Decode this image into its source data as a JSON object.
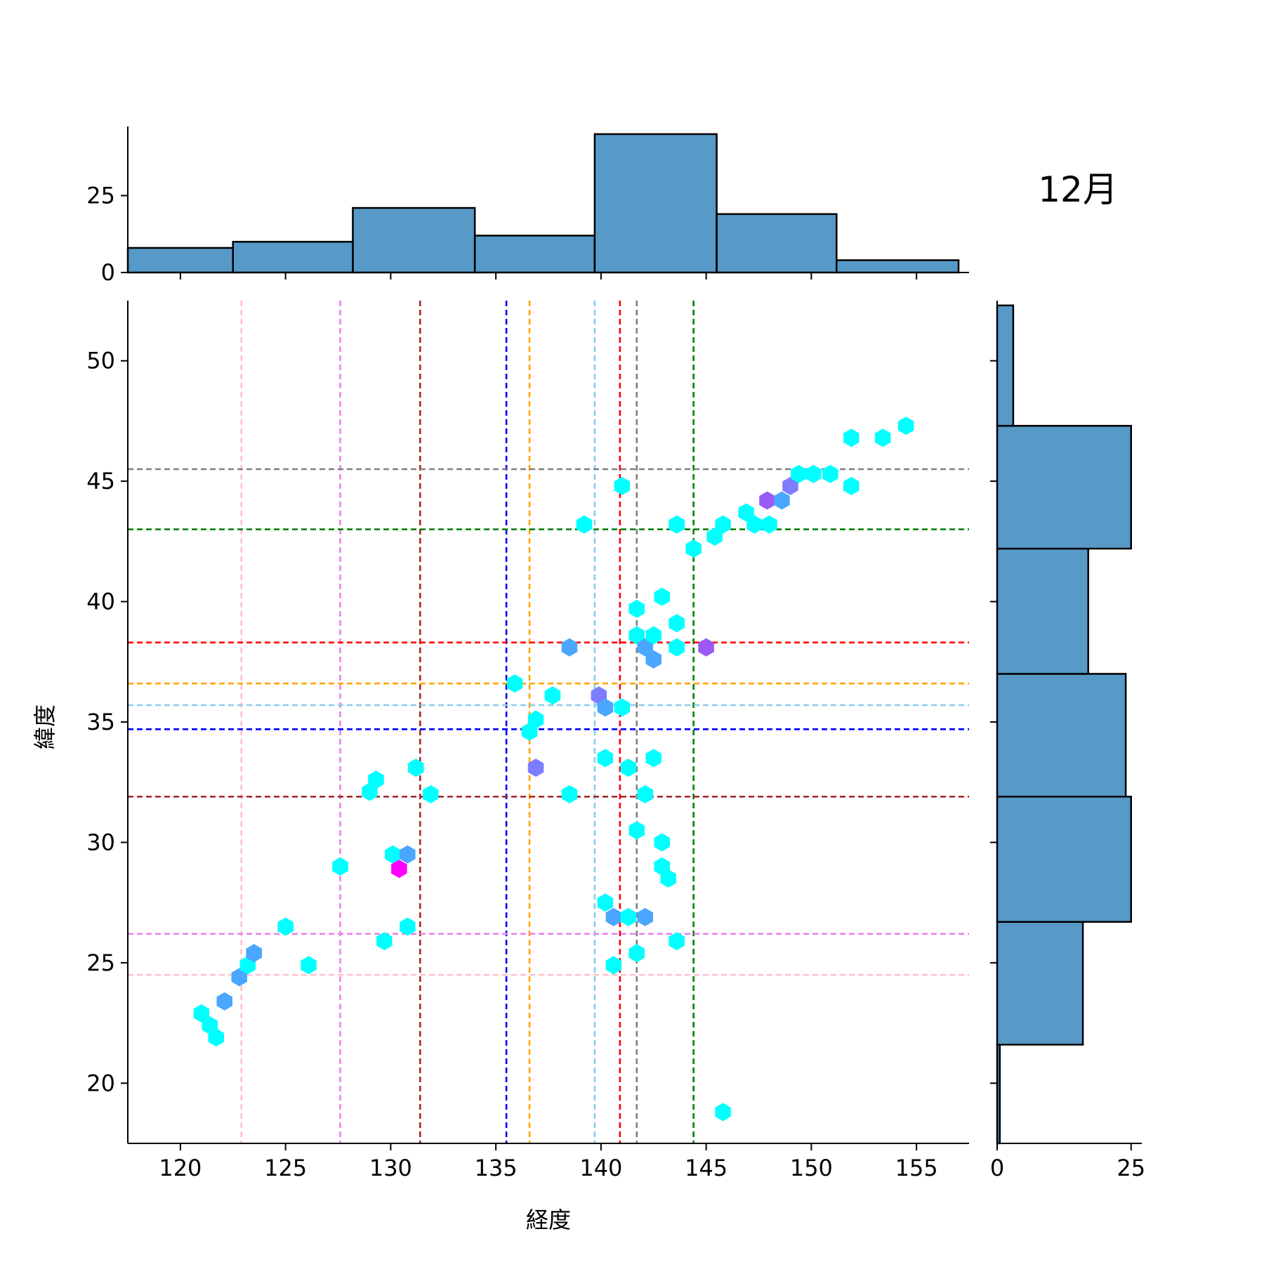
{
  "figure_label": "12月",
  "chart_data": [
    {
      "type": "hexbin",
      "panel": "main",
      "xlabel": "経度",
      "ylabel": "緯度",
      "xlim": [
        117.5,
        157.5
      ],
      "ylim": [
        17.5,
        52.5
      ],
      "xticks": [
        120,
        125,
        130,
        135,
        140,
        145,
        150,
        155
      ],
      "yticks": [
        20,
        25,
        30,
        35,
        40,
        45,
        50
      ],
      "vlines": [
        {
          "x": 122.9,
          "color": "#ffc0cb"
        },
        {
          "x": 127.6,
          "color": "#ee82ee"
        },
        {
          "x": 131.4,
          "color": "#a52a2a"
        },
        {
          "x": 135.5,
          "color": "#0000ff"
        },
        {
          "x": 136.6,
          "color": "#ffa500"
        },
        {
          "x": 139.7,
          "color": "#87ceeb"
        },
        {
          "x": 140.9,
          "color": "#ff0000"
        },
        {
          "x": 141.7,
          "color": "#808080"
        },
        {
          "x": 144.4,
          "color": "#008000"
        }
      ],
      "hlines": [
        {
          "y": 45.5,
          "color": "#808080"
        },
        {
          "y": 43.0,
          "color": "#008000"
        },
        {
          "y": 38.3,
          "color": "#ff0000"
        },
        {
          "y": 36.6,
          "color": "#ffa500"
        },
        {
          "y": 35.7,
          "color": "#87ceeb"
        },
        {
          "y": 34.7,
          "color": "#0000ff"
        },
        {
          "y": 31.9,
          "color": "#a52a2a"
        },
        {
          "y": 26.2,
          "color": "#ee82ee"
        },
        {
          "y": 24.5,
          "color": "#ffc0cb"
        }
      ],
      "points": [
        {
          "x": 121.0,
          "y": 22.9,
          "color": "#00ffff"
        },
        {
          "x": 121.4,
          "y": 22.4,
          "color": "#00ffff"
        },
        {
          "x": 121.7,
          "y": 21.9,
          "color": "#00ffff"
        },
        {
          "x": 122.1,
          "y": 23.4,
          "color": "#4ba6ff"
        },
        {
          "x": 122.8,
          "y": 24.4,
          "color": "#4ba6ff"
        },
        {
          "x": 123.2,
          "y": 24.9,
          "color": "#00ffff"
        },
        {
          "x": 123.5,
          "y": 25.4,
          "color": "#4ba6ff"
        },
        {
          "x": 125.0,
          "y": 26.5,
          "color": "#00ffff"
        },
        {
          "x": 126.1,
          "y": 24.9,
          "color": "#00ffff"
        },
        {
          "x": 127.6,
          "y": 29.0,
          "color": "#00ffff"
        },
        {
          "x": 129.0,
          "y": 32.1,
          "color": "#00ffff"
        },
        {
          "x": 129.3,
          "y": 32.6,
          "color": "#00ffff"
        },
        {
          "x": 129.7,
          "y": 25.9,
          "color": "#00ffff"
        },
        {
          "x": 130.1,
          "y": 29.5,
          "color": "#00ffff"
        },
        {
          "x": 130.4,
          "y": 28.9,
          "color": "#ff00ff"
        },
        {
          "x": 130.8,
          "y": 29.5,
          "color": "#4ba6ff"
        },
        {
          "x": 130.8,
          "y": 26.5,
          "color": "#00ffff"
        },
        {
          "x": 131.2,
          "y": 33.1,
          "color": "#00ffff"
        },
        {
          "x": 131.9,
          "y": 32.0,
          "color": "#00ffff"
        },
        {
          "x": 135.9,
          "y": 36.6,
          "color": "#00ffff"
        },
        {
          "x": 136.6,
          "y": 34.6,
          "color": "#00ffff"
        },
        {
          "x": 136.9,
          "y": 35.1,
          "color": "#00ffff"
        },
        {
          "x": 136.9,
          "y": 33.1,
          "color": "#7d7dff"
        },
        {
          "x": 137.7,
          "y": 36.1,
          "color": "#00ffff"
        },
        {
          "x": 138.5,
          "y": 38.1,
          "color": "#4ba6ff"
        },
        {
          "x": 138.5,
          "y": 32.0,
          "color": "#00ffff"
        },
        {
          "x": 139.2,
          "y": 43.2,
          "color": "#00ffff"
        },
        {
          "x": 139.9,
          "y": 36.1,
          "color": "#7d7dff"
        },
        {
          "x": 140.2,
          "y": 35.6,
          "color": "#4ba6ff"
        },
        {
          "x": 140.2,
          "y": 33.5,
          "color": "#00ffff"
        },
        {
          "x": 140.2,
          "y": 27.5,
          "color": "#00ffff"
        },
        {
          "x": 140.6,
          "y": 26.9,
          "color": "#4ba6ff"
        },
        {
          "x": 140.6,
          "y": 24.9,
          "color": "#00ffff"
        },
        {
          "x": 141.0,
          "y": 44.8,
          "color": "#00ffff"
        },
        {
          "x": 141.0,
          "y": 35.6,
          "color": "#00ffff"
        },
        {
          "x": 141.3,
          "y": 33.1,
          "color": "#00ffff"
        },
        {
          "x": 141.3,
          "y": 26.9,
          "color": "#00ffff"
        },
        {
          "x": 141.7,
          "y": 39.7,
          "color": "#00ffff"
        },
        {
          "x": 141.7,
          "y": 38.6,
          "color": "#00ffff"
        },
        {
          "x": 141.7,
          "y": 30.5,
          "color": "#00ffff"
        },
        {
          "x": 141.7,
          "y": 25.4,
          "color": "#00ffff"
        },
        {
          "x": 142.1,
          "y": 38.1,
          "color": "#4ba6ff"
        },
        {
          "x": 142.1,
          "y": 32.0,
          "color": "#00ffff"
        },
        {
          "x": 142.1,
          "y": 26.9,
          "color": "#4ba6ff"
        },
        {
          "x": 142.5,
          "y": 38.6,
          "color": "#00ffff"
        },
        {
          "x": 142.5,
          "y": 37.6,
          "color": "#4ba6ff"
        },
        {
          "x": 142.5,
          "y": 33.5,
          "color": "#00ffff"
        },
        {
          "x": 142.9,
          "y": 40.2,
          "color": "#00ffff"
        },
        {
          "x": 142.9,
          "y": 30.0,
          "color": "#00ffff"
        },
        {
          "x": 142.9,
          "y": 29.0,
          "color": "#00ffff"
        },
        {
          "x": 143.2,
          "y": 28.5,
          "color": "#00ffff"
        },
        {
          "x": 143.6,
          "y": 43.2,
          "color": "#00ffff"
        },
        {
          "x": 143.6,
          "y": 39.1,
          "color": "#00ffff"
        },
        {
          "x": 143.6,
          "y": 38.1,
          "color": "#00ffff"
        },
        {
          "x": 143.6,
          "y": 25.9,
          "color": "#00ffff"
        },
        {
          "x": 144.4,
          "y": 42.2,
          "color": "#00ffff"
        },
        {
          "x": 145.0,
          "y": 38.1,
          "color": "#9b59f5"
        },
        {
          "x": 145.4,
          "y": 42.7,
          "color": "#00ffff"
        },
        {
          "x": 145.8,
          "y": 43.2,
          "color": "#00ffff"
        },
        {
          "x": 145.8,
          "y": 18.8,
          "color": "#00ffff"
        },
        {
          "x": 146.9,
          "y": 43.7,
          "color": "#00ffff"
        },
        {
          "x": 147.3,
          "y": 43.2,
          "color": "#00ffff"
        },
        {
          "x": 147.9,
          "y": 44.2,
          "color": "#9b59f5"
        },
        {
          "x": 148.0,
          "y": 43.2,
          "color": "#00ffff"
        },
        {
          "x": 148.6,
          "y": 44.2,
          "color": "#4ba6ff"
        },
        {
          "x": 149.0,
          "y": 44.8,
          "color": "#7d7dff"
        },
        {
          "x": 149.4,
          "y": 45.3,
          "color": "#00ffff"
        },
        {
          "x": 150.1,
          "y": 45.3,
          "color": "#00ffff"
        },
        {
          "x": 150.9,
          "y": 45.3,
          "color": "#00ffff"
        },
        {
          "x": 151.9,
          "y": 46.8,
          "color": "#00ffff"
        },
        {
          "x": 151.9,
          "y": 44.8,
          "color": "#00ffff"
        },
        {
          "x": 153.4,
          "y": 46.8,
          "color": "#00ffff"
        },
        {
          "x": 154.5,
          "y": 47.3,
          "color": "#00ffff"
        }
      ]
    },
    {
      "type": "bar",
      "panel": "top-marginal",
      "bin_edges": [
        117.5,
        122.5,
        128.2,
        134.0,
        139.7,
        145.5,
        151.2,
        157.0
      ],
      "counts": [
        8,
        10,
        21,
        12,
        45,
        19,
        4
      ],
      "yticks": [
        0,
        25
      ],
      "bar_color": "#5799c7"
    },
    {
      "type": "bar",
      "orientation": "horizontal",
      "panel": "right-marginal",
      "bin_edges": [
        17.5,
        21.6,
        26.7,
        31.9,
        37.0,
        42.2,
        47.3,
        52.3
      ],
      "counts": [
        0.5,
        16,
        25,
        24,
        17,
        25,
        3
      ],
      "xticks": [
        0,
        25
      ],
      "bar_color": "#5799c7"
    }
  ]
}
